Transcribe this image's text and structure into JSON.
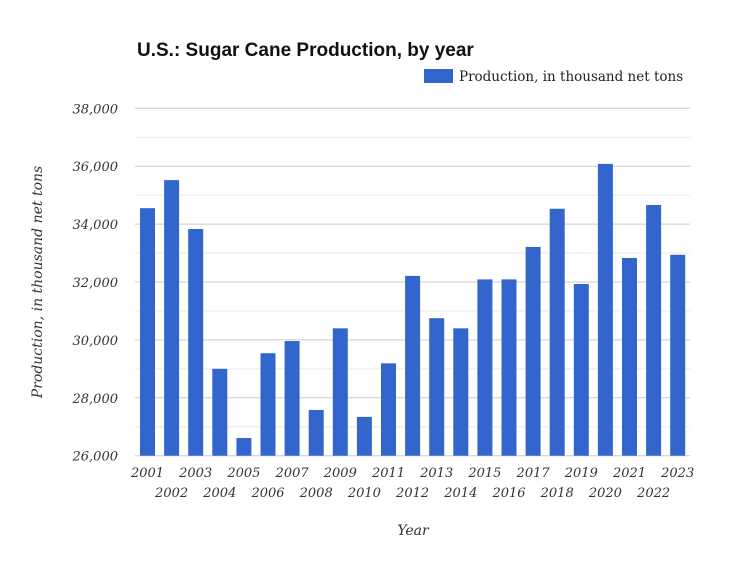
{
  "chart_data": {
    "type": "bar",
    "title": "U.S.: Sugar Cane Production, by year",
    "xlabel": "Year",
    "ylabel": "Production, in thousand net tons",
    "ylim": [
      26000,
      38000
    ],
    "yticks": [
      26000,
      28000,
      30000,
      32000,
      34000,
      36000,
      38000
    ],
    "ytick_labels": [
      "26,000",
      "28,000",
      "30,000",
      "32,000",
      "34,000",
      "36,000",
      "38,000"
    ],
    "grid": true,
    "legend_position": "top-right",
    "color": "#3366cc",
    "categories": [
      "2001",
      "2002",
      "2003",
      "2004",
      "2005",
      "2006",
      "2007",
      "2008",
      "2009",
      "2010",
      "2011",
      "2012",
      "2013",
      "2014",
      "2015",
      "2016",
      "2017",
      "2018",
      "2019",
      "2020",
      "2021",
      "2022",
      "2023"
    ],
    "series": [
      {
        "name": "Production, in thousand net tons",
        "values": [
          34550,
          35520,
          33830,
          29000,
          26610,
          29540,
          29960,
          27580,
          30400,
          27340,
          29190,
          32210,
          30750,
          30400,
          32090,
          32090,
          33210,
          34530,
          31930,
          36080,
          32830,
          34660,
          32940
        ]
      }
    ]
  }
}
